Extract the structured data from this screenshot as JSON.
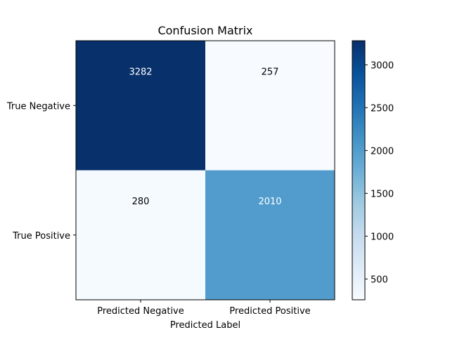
{
  "chart_data": {
    "type": "heatmap",
    "title": "Confusion Matrix",
    "xlabel": "Predicted Label",
    "ylabel": "",
    "x_categories": [
      "Predicted Negative",
      "Predicted Positive"
    ],
    "y_categories": [
      "True Negative",
      "True Positive"
    ],
    "values": [
      [
        3282,
        257
      ],
      [
        280,
        2010
      ]
    ],
    "colormap": "Blues",
    "colorbar": {
      "range": [
        257,
        3282
      ],
      "ticks": [
        500,
        1000,
        1500,
        2000,
        2500,
        3000
      ]
    },
    "grid": false
  }
}
